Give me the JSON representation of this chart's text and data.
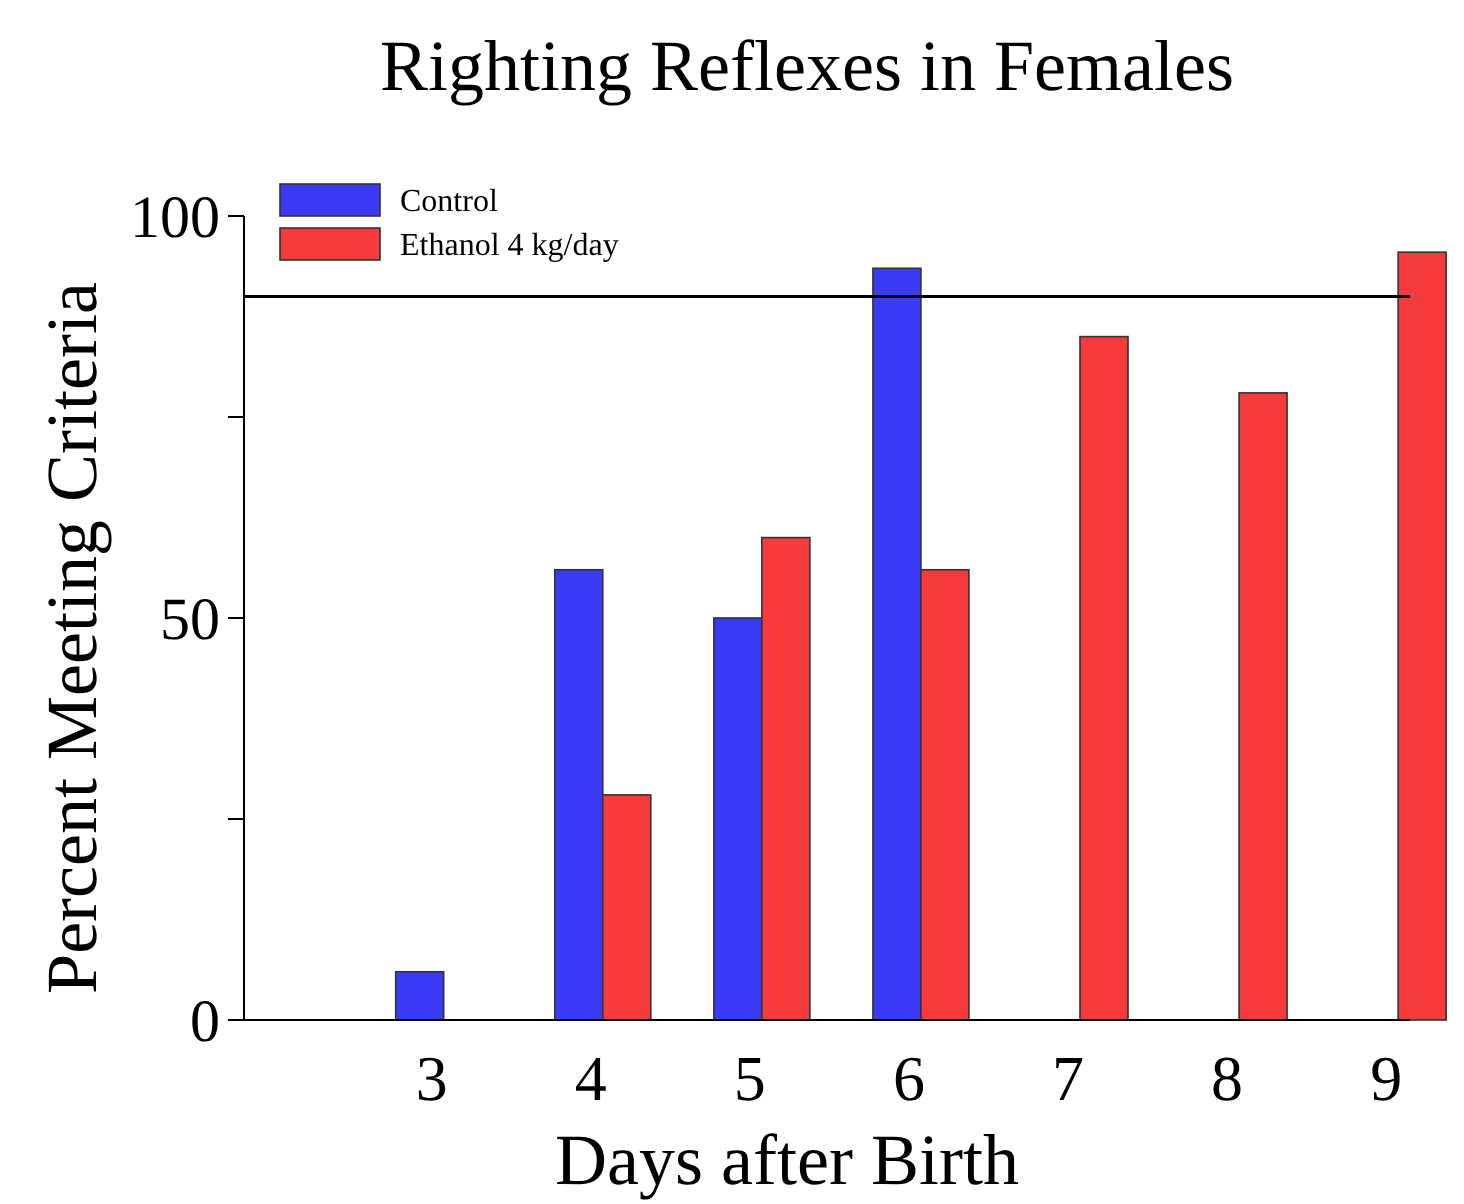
{
  "chart_data": {
    "type": "bar",
    "title": "Righting Reflexes in Females",
    "xlabel": "Days after Birth",
    "ylabel": "Percent Meeting Criteria",
    "categories": [
      "3",
      "4",
      "5",
      "6",
      "7",
      "8",
      "9"
    ],
    "series": [
      {
        "name": "Control",
        "color": "#3b3bf5",
        "values": [
          6,
          56,
          50,
          93.5,
          null,
          null,
          null
        ]
      },
      {
        "name": "Ethanol 4 kg/day",
        "color": "#f53b3b",
        "values": [
          null,
          28,
          60,
          56,
          85,
          78,
          95.5
        ]
      }
    ],
    "ylim": [
      0,
      100
    ],
    "yticks": [
      0,
      {
        "value": 25,
        "label": null
      },
      50,
      {
        "value": 75,
        "label": null
      },
      100
    ],
    "ref_lines": [
      {
        "axis": "y",
        "value": 90,
        "color": "#000000"
      }
    ],
    "legend": "top left",
    "grid": false
  }
}
